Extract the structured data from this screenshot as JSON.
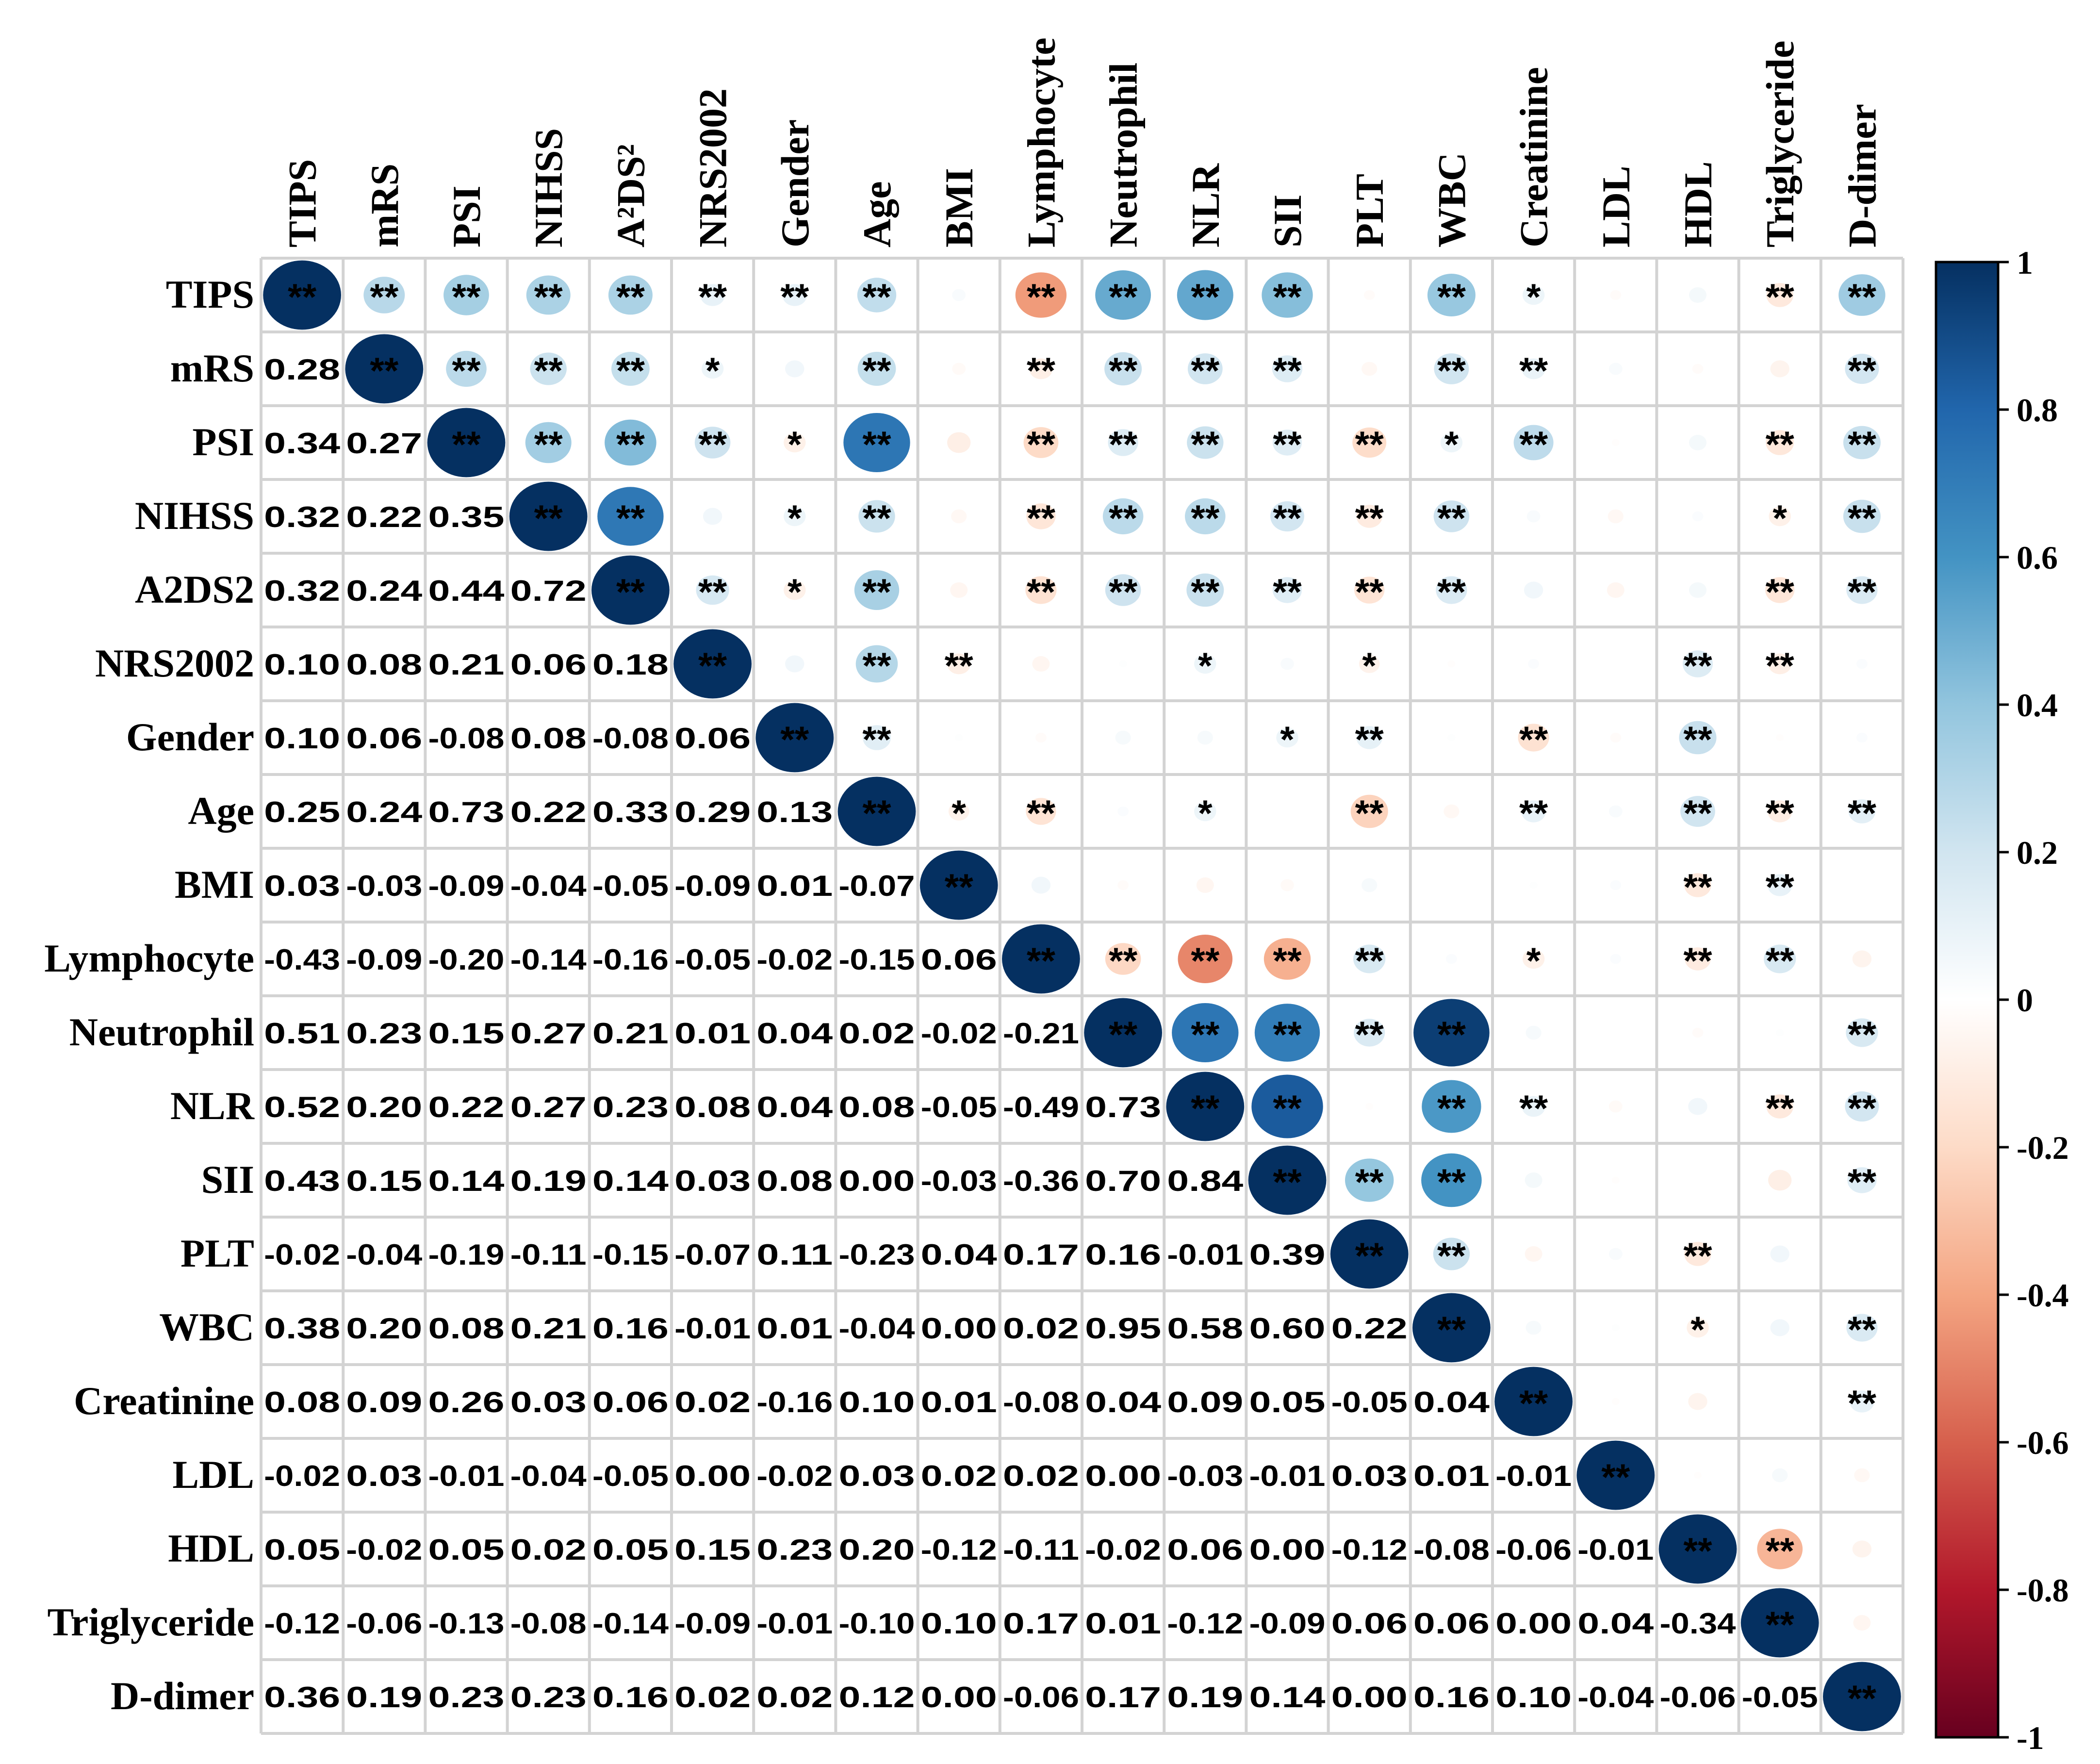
{
  "chart_data": {
    "type": "heatmap",
    "subtype": "correlation-matrix-mixed",
    "variables": [
      "TIPS",
      "mRS",
      "PSI",
      "NIHSS",
      "A2DS2",
      "NRS2002",
      "Gender",
      "Age",
      "BMI",
      "Lymphocyte",
      "Neutrophil",
      "NLR",
      "SII",
      "PLT",
      "WBC",
      "Creatinine",
      "LDL",
      "HDL",
      "Triglyceride",
      "D-dimer"
    ],
    "row_labels": [
      "TIPS",
      "mRS",
      "PSI",
      "NIHSS",
      "A2DS2",
      "NRS2002",
      "Gender",
      "Age",
      "BMI",
      "Lymphocyte",
      "Neutrophil",
      "NLR",
      "SII",
      "PLT",
      "WBC",
      "Creatinine",
      "LDL",
      "HDL",
      "Triglyceride",
      "D-dimer"
    ],
    "column_labels": [
      "TIPS",
      "mRS",
      "PSI",
      "NIHSS",
      "A²DS²",
      "NRS2002",
      "Gender",
      "Age",
      "BMI",
      "Lymphocyte",
      "Neutrophil",
      "NLR",
      "SII",
      "PLT",
      "WBC",
      "Creatinine",
      "LDL",
      "HDL",
      "Triglyceride",
      "D-dimer"
    ],
    "lower_triangle_labels": [
      [],
      [
        "0.28"
      ],
      [
        "0.34",
        "0.27"
      ],
      [
        "0.32",
        "0.22",
        "0.35"
      ],
      [
        "0.32",
        "0.24",
        "0.44",
        "0.72"
      ],
      [
        "0.10",
        "0.08",
        "0.21",
        "0.06",
        "0.18"
      ],
      [
        "0.10",
        "0.06",
        "-0.08",
        "0.08",
        "-0.08",
        "0.06"
      ],
      [
        "0.25",
        "0.24",
        "0.73",
        "0.22",
        "0.33",
        "0.29",
        "0.13"
      ],
      [
        "0.03",
        "-0.03",
        "-0.09",
        "-0.04",
        "-0.05",
        "-0.09",
        "0.01",
        "-0.07"
      ],
      [
        "-0.43",
        "-0.09",
        "-0.20",
        "-0.14",
        "-0.16",
        "-0.05",
        "-0.02",
        "-0.15",
        "0.06"
      ],
      [
        "0.51",
        "0.23",
        "0.15",
        "0.27",
        "0.21",
        "0.01",
        "0.04",
        "0.02",
        "-0.02",
        "-0.21"
      ],
      [
        "0.52",
        "0.20",
        "0.22",
        "0.27",
        "0.23",
        "0.08",
        "0.04",
        "0.08",
        "-0.05",
        "-0.49",
        "0.73"
      ],
      [
        "0.43",
        "0.15",
        "0.14",
        "0.19",
        "0.14",
        "0.03",
        "0.08",
        "0.00",
        "-0.03",
        "-0.36",
        "0.70",
        "0.84"
      ],
      [
        "-0.02",
        "-0.04",
        "-0.19",
        "-0.11",
        "-0.15",
        "-0.07",
        "0.11",
        "-0.23",
        "0.04",
        "0.17",
        "0.16",
        "-0.01",
        "0.39"
      ],
      [
        "0.38",
        "0.20",
        "0.08",
        "0.21",
        "0.16",
        "-0.01",
        "0.01",
        "-0.04",
        "0.00",
        "0.02",
        "0.95",
        "0.58",
        "0.60",
        "0.22"
      ],
      [
        "0.08",
        "0.09",
        "0.26",
        "0.03",
        "0.06",
        "0.02",
        "-0.16",
        "0.10",
        "0.01",
        "-0.08",
        "0.04",
        "0.09",
        "0.05",
        "-0.05",
        "0.04"
      ],
      [
        "-0.02",
        "0.03",
        "-0.01",
        "-0.04",
        "-0.05",
        "0.00",
        "-0.02",
        "0.03",
        "0.02",
        "0.02",
        "0.00",
        "-0.03",
        "-0.01",
        "0.03",
        "0.01",
        "-0.01"
      ],
      [
        "0.05",
        "-0.02",
        "0.05",
        "0.02",
        "0.05",
        "0.15",
        "0.23",
        "0.20",
        "-0.12",
        "-0.11",
        "-0.02",
        "0.06",
        "0.00",
        "-0.12",
        "-0.08",
        "-0.06",
        "-0.01"
      ],
      [
        "-0.12",
        "-0.06",
        "-0.13",
        "-0.08",
        "-0.14",
        "-0.09",
        "-0.01",
        "-0.10",
        "0.10",
        "0.17",
        "0.01",
        "-0.12",
        "-0.09",
        "0.06",
        "0.06",
        "0.00",
        "0.04",
        "-0.34"
      ],
      [
        "0.36",
        "0.19",
        "0.23",
        "0.23",
        "0.16",
        "0.02",
        "0.02",
        "0.12",
        "0.00",
        "-0.06",
        "0.17",
        "0.19",
        "0.14",
        "0.00",
        "0.16",
        "0.10",
        "-0.04",
        "-0.06",
        "-0.05"
      ]
    ],
    "significance": [
      [
        "**",
        "**",
        "**",
        "**",
        "**",
        "**",
        "**",
        "**",
        "",
        "**",
        "**",
        "**",
        "**",
        "",
        "**",
        "*",
        "",
        "",
        "**",
        "**"
      ],
      [
        "",
        "**",
        "**",
        "**",
        "**",
        "*",
        "",
        "**",
        "",
        "**",
        "**",
        "**",
        "**",
        "",
        "**",
        "**",
        "",
        "",
        "",
        "**"
      ],
      [
        "",
        "",
        "**",
        "**",
        "**",
        "**",
        "*",
        "**",
        "",
        "**",
        "**",
        "**",
        "**",
        "**",
        "*",
        "**",
        "",
        "",
        "**",
        "**"
      ],
      [
        "",
        "",
        "",
        "**",
        "**",
        "",
        "*",
        "**",
        "",
        "**",
        "**",
        "**",
        "**",
        "**",
        "**",
        "",
        "",
        "",
        "*",
        "**"
      ],
      [
        "",
        "",
        "",
        "",
        "**",
        "**",
        "*",
        "**",
        "",
        "**",
        "**",
        "**",
        "**",
        "**",
        "**",
        "",
        "",
        "",
        "**",
        "**"
      ],
      [
        "",
        "",
        "",
        "",
        "",
        "**",
        "",
        "**",
        "**",
        "",
        "",
        "*",
        "",
        "*",
        "",
        "",
        "",
        "**",
        "**",
        ""
      ],
      [
        "",
        "",
        "",
        "",
        "",
        "",
        "**",
        "**",
        "",
        "",
        "",
        "",
        "*",
        "**",
        "",
        "**",
        "",
        "**",
        "",
        ""
      ],
      [
        "",
        "",
        "",
        "",
        "",
        "",
        "",
        "**",
        "*",
        "**",
        "",
        "*",
        "",
        "**",
        "",
        "**",
        "",
        "**",
        "**",
        "**"
      ],
      [
        "",
        "",
        "",
        "",
        "",
        "",
        "",
        "",
        "**",
        "",
        "",
        "",
        "",
        "",
        "",
        "",
        "",
        "**",
        "**",
        ""
      ],
      [
        "",
        "",
        "",
        "",
        "",
        "",
        "",
        "",
        "",
        "**",
        "**",
        "**",
        "**",
        "**",
        "",
        "*",
        "",
        "**",
        "**",
        ""
      ],
      [
        "",
        "",
        "",
        "",
        "",
        "",
        "",
        "",
        "",
        "",
        "**",
        "**",
        "**",
        "**",
        "**",
        "",
        "",
        "",
        "",
        "**"
      ],
      [
        "",
        "",
        "",
        "",
        "",
        "",
        "",
        "",
        "",
        "",
        "",
        "**",
        "**",
        "",
        "**",
        "**",
        "",
        "",
        "**",
        "**"
      ],
      [
        "",
        "",
        "",
        "",
        "",
        "",
        "",
        "",
        "",
        "",
        "",
        "",
        "**",
        "**",
        "**",
        "",
        "",
        "",
        "",
        "**"
      ],
      [
        "",
        "",
        "",
        "",
        "",
        "",
        "",
        "",
        "",
        "",
        "",
        "",
        "",
        "**",
        "**",
        "",
        "",
        "**",
        "",
        ""
      ],
      [
        "",
        "",
        "",
        "",
        "",
        "",
        "",
        "",
        "",
        "",
        "",
        "",
        "",
        "",
        "**",
        "",
        "",
        "*",
        "",
        "**"
      ],
      [
        "",
        "",
        "",
        "",
        "",
        "",
        "",
        "",
        "",
        "",
        "",
        "",
        "",
        "",
        "",
        "**",
        "",
        "",
        "",
        "**"
      ],
      [
        "",
        "",
        "",
        "",
        "",
        "",
        "",
        "",
        "",
        "",
        "",
        "",
        "",
        "",
        "",
        "",
        "**",
        "",
        "",
        ""
      ],
      [
        "",
        "",
        "",
        "",
        "",
        "",
        "",
        "",
        "",
        "",
        "",
        "",
        "",
        "",
        "",
        "",
        "",
        "**",
        "**",
        ""
      ],
      [
        "",
        "",
        "",
        "",
        "",
        "",
        "",
        "",
        "",
        "",
        "",
        "",
        "",
        "",
        "",
        "",
        "",
        "",
        "**",
        ""
      ],
      [
        "",
        "",
        "",
        "",
        "",
        "",
        "",
        "",
        "",
        "",
        "",
        "",
        "",
        "",
        "",
        "",
        "",
        "",
        "",
        "**"
      ]
    ],
    "colorbar": {
      "min": -1,
      "max": 1,
      "tick_labels": [
        "1",
        "0.8",
        "0.6",
        "0.4",
        "0.2",
        "0",
        "-0.2",
        "-0.4",
        "-0.6",
        "-0.8",
        "-1"
      ],
      "colors": {
        "neg": "#67001F",
        "mid": "#FFFFFF",
        "pos": "#053061"
      }
    },
    "upper_triangle": "ellipse size and color proportional to correlation",
    "diagonal_value": 1.0
  }
}
